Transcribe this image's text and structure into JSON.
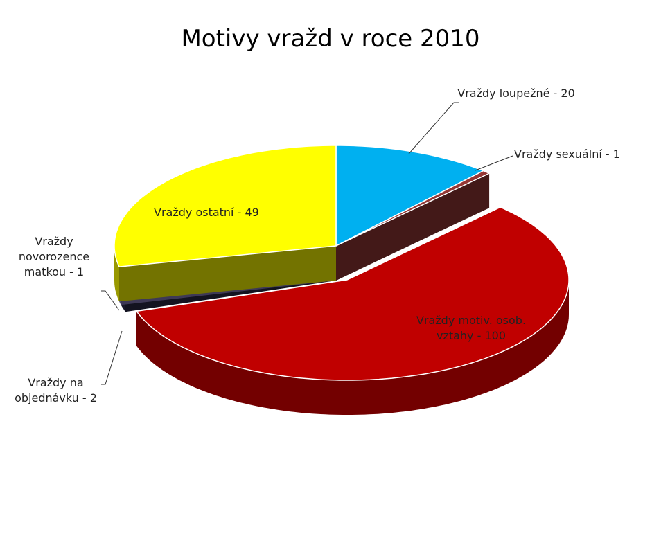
{
  "chart_data": {
    "type": "pie3d",
    "title": "Motivy vražd v roce 2010",
    "categories": [
      "Vraždy loupežné - 20",
      "Vraždy sexuální - 1",
      "Vraždy motiv. osob. vztahy - 100",
      "Vraždy na objednávku - 2",
      "Vraždy novorozence matkou - 1",
      "Vraždy ostatní - 49"
    ],
    "values": [
      20,
      1,
      100,
      2,
      1,
      49
    ],
    "colors": [
      "#00b0f0",
      "#953735",
      "#c00000",
      "#2b2a48",
      "#8a7fc0",
      "#ffff00"
    ],
    "exploded": [
      2
    ]
  }
}
